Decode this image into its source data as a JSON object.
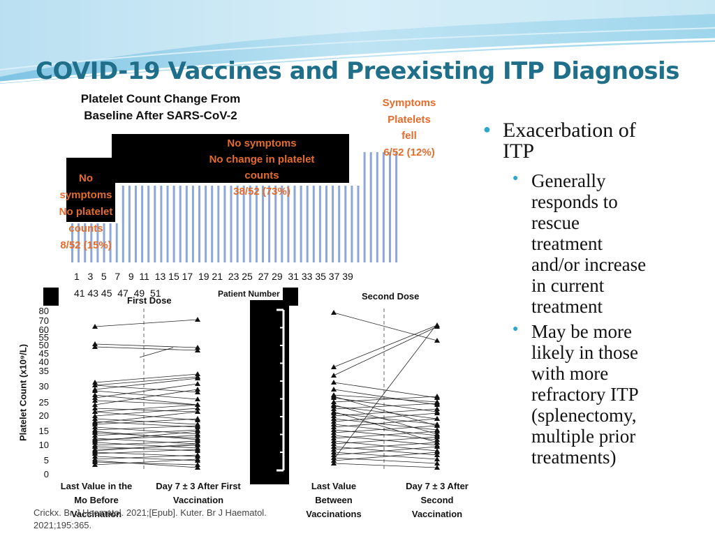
{
  "slide": {
    "title": "COVID-19 Vaccines and Preexisting ITP Diagnosis",
    "citation_line1": "Crickx. Br J Haematol. 2021;[Epub]. Kuter. Br J Haematol.",
    "citation_line2": "2021;195:365."
  },
  "top_chart": {
    "heading_line1": "Platelet Count Change From",
    "heading_line2": "Baseline After SARS-CoV-2",
    "x_ticks_row1": "1   3   5   7   9  11  13 15 17  19 21  23 25  27 29  31 33 35 37 39",
    "x_ticks_row2": "41 43 45  47  49  51",
    "x_label": "Patient Number",
    "box_no_symptoms_stable": [
      "No symptoms",
      "No change in platelet",
      "counts",
      "38/52 (73%)"
    ],
    "box_no_symptoms_no_counts": [
      "No",
      "symptoms",
      "No platelet",
      "counts",
      "8/52 (15%)"
    ],
    "box_symptoms_fell": [
      "Symptoms",
      "Platelets",
      "fell",
      "6/52 (12%)"
    ]
  },
  "bottom_charts": {
    "y_axis_label": "Platelet Count (x10⁹/L)",
    "y_ticks": [
      "80",
      "70",
      "60",
      "55",
      "50",
      "45",
      "40",
      "35",
      "30",
      "25",
      "20",
      "15",
      "10",
      "5",
      "0"
    ],
    "first_dose_title": "First Dose",
    "second_dose_title": "Second Dose",
    "first_x_left": [
      "Last Value in the",
      "Mo Before",
      "Vaccination"
    ],
    "first_x_right": [
      "Day 7 ± 3 After First",
      "Vaccination"
    ],
    "second_x_left": [
      "Last Value",
      "Between",
      "Vaccinations"
    ],
    "second_x_right": [
      "Day 7 ± 3 After",
      "Second",
      "Vaccination"
    ]
  },
  "bullets": {
    "main": [
      "Exacerbation of",
      "ITP"
    ],
    "sub1": [
      "Generally",
      "responds to",
      "rescue",
      "treatment",
      "and/or increase",
      "in current",
      "treatment"
    ],
    "sub2": [
      "May be more",
      "likely in those",
      "with more",
      "refractory ITP",
      "(splenectomy,",
      "multiple prior",
      "treatments)"
    ]
  },
  "colors": {
    "title": "#1f6f8b",
    "bar": "#8ea7d8",
    "annotation": "#e46c2c",
    "bullet": "#2aa7c9"
  }
}
